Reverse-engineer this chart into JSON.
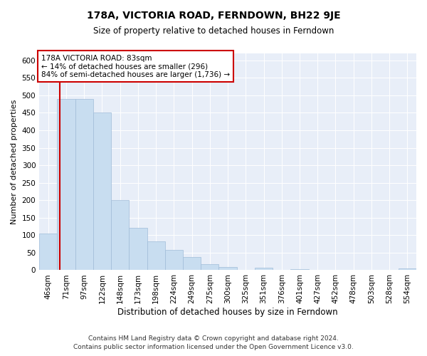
{
  "title": "178A, VICTORIA ROAD, FERNDOWN, BH22 9JE",
  "subtitle": "Size of property relative to detached houses in Ferndown",
  "xlabel": "Distribution of detached houses by size in Ferndown",
  "ylabel": "Number of detached properties",
  "bar_labels": [
    "46sqm",
    "71sqm",
    "97sqm",
    "122sqm",
    "148sqm",
    "173sqm",
    "198sqm",
    "224sqm",
    "249sqm",
    "275sqm",
    "300sqm",
    "325sqm",
    "351sqm",
    "376sqm",
    "401sqm",
    "427sqm",
    "452sqm",
    "478sqm",
    "503sqm",
    "528sqm",
    "554sqm"
  ],
  "bar_values": [
    105,
    490,
    490,
    450,
    200,
    122,
    82,
    58,
    38,
    17,
    10,
    0,
    8,
    0,
    3,
    0,
    0,
    0,
    0,
    0,
    5
  ],
  "bar_color": "#c8ddf0",
  "bar_edge_color": "#a0bcd8",
  "marker_color": "#cc0000",
  "annotation_title": "178A VICTORIA ROAD: 83sqm",
  "annotation_line1": "← 14% of detached houses are smaller (296)",
  "annotation_line2": "84% of semi-detached houses are larger (1,736) →",
  "annotation_box_facecolor": "#ffffff",
  "annotation_box_edgecolor": "#cc0000",
  "ylim": [
    0,
    620
  ],
  "yticks": [
    0,
    50,
    100,
    150,
    200,
    250,
    300,
    350,
    400,
    450,
    500,
    550,
    600
  ],
  "footnote1": "Contains HM Land Registry data © Crown copyright and database right 2024.",
  "footnote2": "Contains public sector information licensed under the Open Government Licence v3.0.",
  "bg_color": "#ffffff",
  "plot_bg_color": "#e8eef8",
  "grid_color": "#ffffff",
  "title_fontsize": 10,
  "subtitle_fontsize": 8.5,
  "ylabel_fontsize": 8,
  "xlabel_fontsize": 8.5,
  "tick_fontsize": 7.5,
  "annotation_fontsize": 7.5,
  "footnote_fontsize": 6.5
}
